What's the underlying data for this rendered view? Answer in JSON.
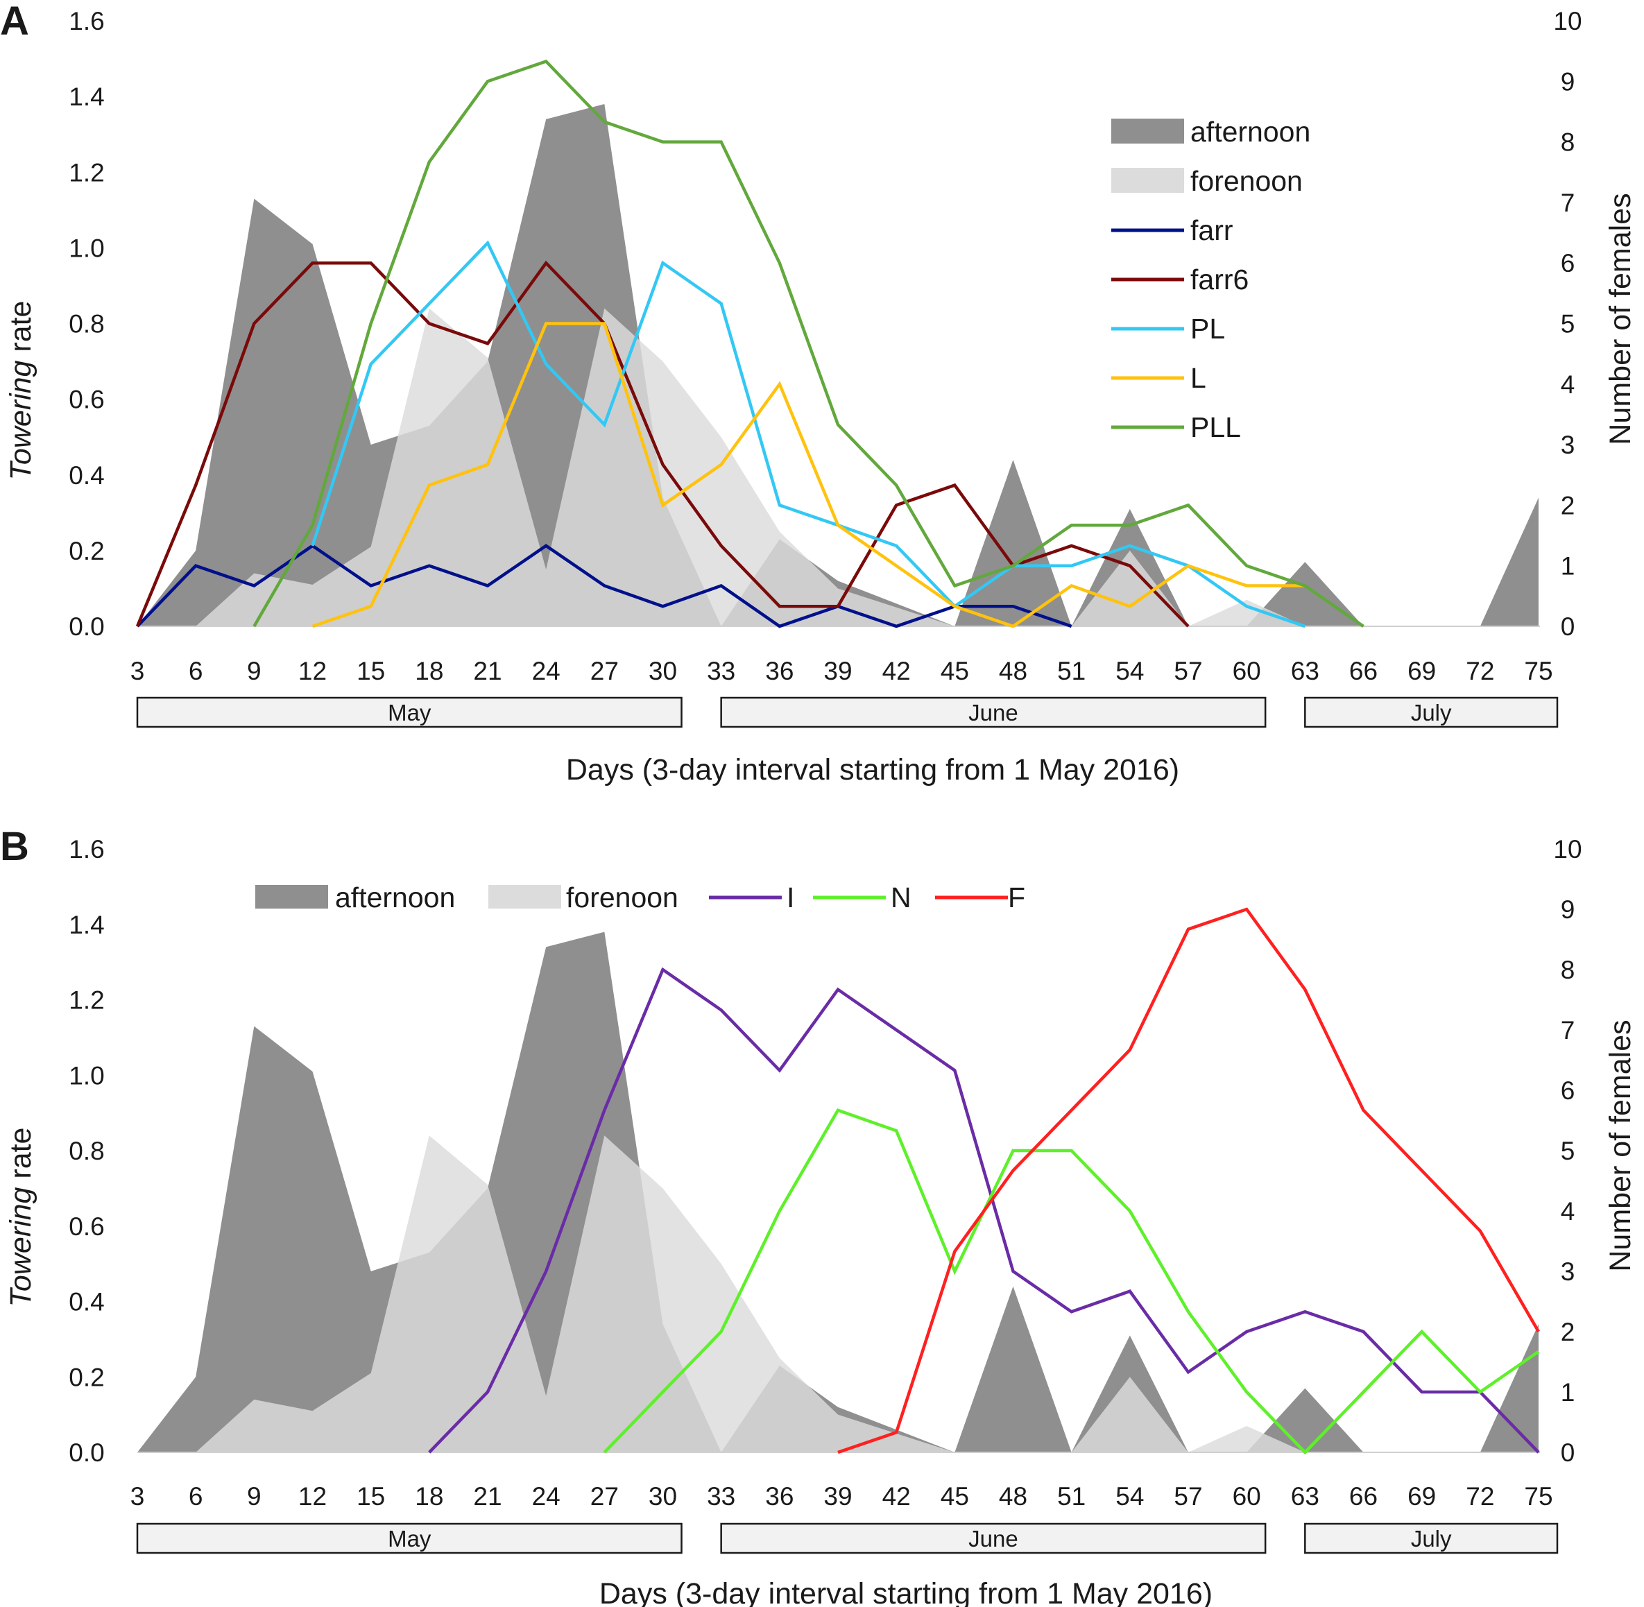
{
  "figure": {
    "x_ticks": [
      3,
      6,
      9,
      12,
      15,
      18,
      21,
      24,
      27,
      30,
      33,
      36,
      39,
      42,
      45,
      48,
      51,
      54,
      57,
      60,
      63,
      66,
      69,
      72,
      75
    ],
    "left_ticks": [
      "0.0",
      "0.2",
      "0.4",
      "0.6",
      "0.8",
      "1.0",
      "1.2",
      "1.4",
      "1.6"
    ],
    "right_ticks": [
      "0",
      "1",
      "2",
      "3",
      "4",
      "5",
      "6",
      "7",
      "8",
      "9",
      "10"
    ],
    "xlabel": "Days (3-day interval starting from 1 May 2016)",
    "ylabel_italic": "Towering",
    "ylabel_rest": " rate",
    "y2label": "Number of females",
    "months": [
      {
        "label": "May",
        "start": 3,
        "end": 30
      },
      {
        "label": "June",
        "start": 33,
        "end": 60
      },
      {
        "label": "July",
        "start": 63,
        "end": 75
      }
    ]
  },
  "chart_data": [
    {
      "panel": "A",
      "type": "area",
      "xlabel": "Days (3-day interval starting from 1 May 2016)",
      "ylabel": "Towering rate",
      "y2label": "Number of females",
      "ylim": [
        0,
        1.6
      ],
      "y2lim": [
        0,
        10
      ],
      "x": [
        3,
        6,
        9,
        12,
        15,
        18,
        21,
        24,
        27,
        30,
        33,
        36,
        39,
        42,
        45,
        48,
        51,
        54,
        57,
        60,
        63,
        66,
        69,
        72,
        75
      ],
      "legend_position": "top-right",
      "areas": [
        {
          "name": "afternoon",
          "color": "#8f8f8f",
          "axis": "left",
          "values": [
            0,
            0.2,
            1.13,
            1.01,
            0.48,
            0.53,
            0.7,
            1.34,
            1.38,
            0.34,
            0,
            0.23,
            0.12,
            0.06,
            0,
            0.44,
            0,
            0.31,
            0,
            0,
            0.17,
            0,
            0,
            0,
            0.34
          ]
        },
        {
          "name": "forenoon",
          "color": "#dcdcdc",
          "axis": "left",
          "values": [
            0,
            0,
            0.14,
            0.11,
            0.21,
            0.84,
            0.71,
            0.15,
            0.84,
            0.7,
            0.5,
            0.25,
            0.1,
            0.05,
            0,
            0,
            0,
            0.2,
            0,
            0.07,
            0,
            0,
            0,
            0,
            0
          ]
        }
      ],
      "series": [
        {
          "name": "farr",
          "color": "#00108a",
          "axis": "right",
          "values": [
            0,
            1,
            0.67,
            1.33,
            0.67,
            1,
            0.67,
            1.33,
            0.67,
            0.33,
            0.67,
            0,
            0.33,
            0,
            0.33,
            0.33,
            0,
            null,
            null,
            null,
            null,
            null,
            null,
            null,
            null
          ]
        },
        {
          "name": "farr6",
          "color": "#7a0a0a",
          "axis": "right",
          "values": [
            0,
            2.33,
            5,
            6,
            6,
            5,
            4.67,
            6,
            5,
            2.67,
            1.33,
            0.33,
            0.33,
            2,
            2.33,
            1,
            1.33,
            1,
            0,
            null,
            null,
            null,
            null,
            null,
            null
          ]
        },
        {
          "name": "PL",
          "color": "#33c8f4",
          "axis": "right",
          "values": [
            null,
            null,
            null,
            1.33,
            4.33,
            5.33,
            6.33,
            4.33,
            3.33,
            6,
            5.33,
            2,
            1.67,
            1.33,
            0.33,
            1,
            1,
            1.33,
            1,
            0.33,
            0,
            null,
            null,
            null,
            null
          ]
        },
        {
          "name": "L",
          "color": "#ffc20e",
          "axis": "right",
          "values": [
            null,
            null,
            null,
            0,
            0.33,
            2.33,
            2.67,
            5,
            5,
            2,
            2.67,
            4,
            1.67,
            1,
            0.33,
            0,
            0.67,
            0.33,
            1,
            0.67,
            0.67,
            null,
            null,
            null,
            null
          ]
        },
        {
          "name": "PLL",
          "color": "#62a83c",
          "axis": "right",
          "values": [
            null,
            null,
            0,
            1.67,
            5,
            7.67,
            9,
            9.33,
            8.33,
            8,
            8,
            6,
            3.33,
            2.33,
            0.67,
            1,
            1.67,
            1.67,
            2,
            1,
            0.67,
            0,
            null,
            null,
            null
          ]
        }
      ]
    },
    {
      "panel": "B",
      "type": "area",
      "xlabel": "Days (3-day interval starting from 1 May 2016)",
      "ylabel": "Towering rate",
      "y2label": "Number of females",
      "ylim": [
        0,
        1.6
      ],
      "y2lim": [
        0,
        10
      ],
      "x": [
        3,
        6,
        9,
        12,
        15,
        18,
        21,
        24,
        27,
        30,
        33,
        36,
        39,
        42,
        45,
        48,
        51,
        54,
        57,
        60,
        63,
        66,
        69,
        72,
        75
      ],
      "legend_position": "top",
      "areas": [
        {
          "name": "afternoon",
          "color": "#8f8f8f",
          "axis": "left",
          "values": [
            0,
            0.2,
            1.13,
            1.01,
            0.48,
            0.53,
            0.7,
            1.34,
            1.38,
            0.34,
            0,
            0.23,
            0.12,
            0.06,
            0,
            0.44,
            0,
            0.31,
            0,
            0,
            0.17,
            0,
            0,
            0,
            0.34
          ]
        },
        {
          "name": "forenoon",
          "color": "#dcdcdc",
          "axis": "left",
          "values": [
            0,
            0,
            0.14,
            0.11,
            0.21,
            0.84,
            0.71,
            0.15,
            0.84,
            0.7,
            0.5,
            0.25,
            0.1,
            0.05,
            0,
            0,
            0,
            0.2,
            0,
            0.07,
            0,
            0,
            0,
            0,
            0
          ]
        }
      ],
      "series": [
        {
          "name": "I",
          "color": "#6a2ca6",
          "axis": "right",
          "values": [
            null,
            null,
            null,
            null,
            null,
            0,
            1,
            3,
            5.67,
            8,
            7.33,
            6.33,
            7.67,
            7,
            6.33,
            3,
            2.33,
            2.67,
            1.33,
            2,
            2.33,
            2,
            1,
            1,
            0
          ]
        },
        {
          "name": "N",
          "color": "#5ef02a",
          "axis": "right",
          "values": [
            null,
            null,
            null,
            null,
            null,
            null,
            null,
            null,
            0,
            1,
            2,
            4,
            5.67,
            5.33,
            3,
            5,
            5,
            4,
            2.33,
            1,
            0,
            1,
            2,
            1,
            1.67
          ]
        },
        {
          "name": "F",
          "color": "#ff2020",
          "axis": "right",
          "values": [
            null,
            null,
            null,
            null,
            null,
            null,
            null,
            null,
            null,
            null,
            null,
            null,
            0,
            0.33,
            3.33,
            4.67,
            5.67,
            6.67,
            8.67,
            9,
            7.67,
            5.67,
            4.67,
            3.67,
            2
          ]
        }
      ]
    }
  ]
}
